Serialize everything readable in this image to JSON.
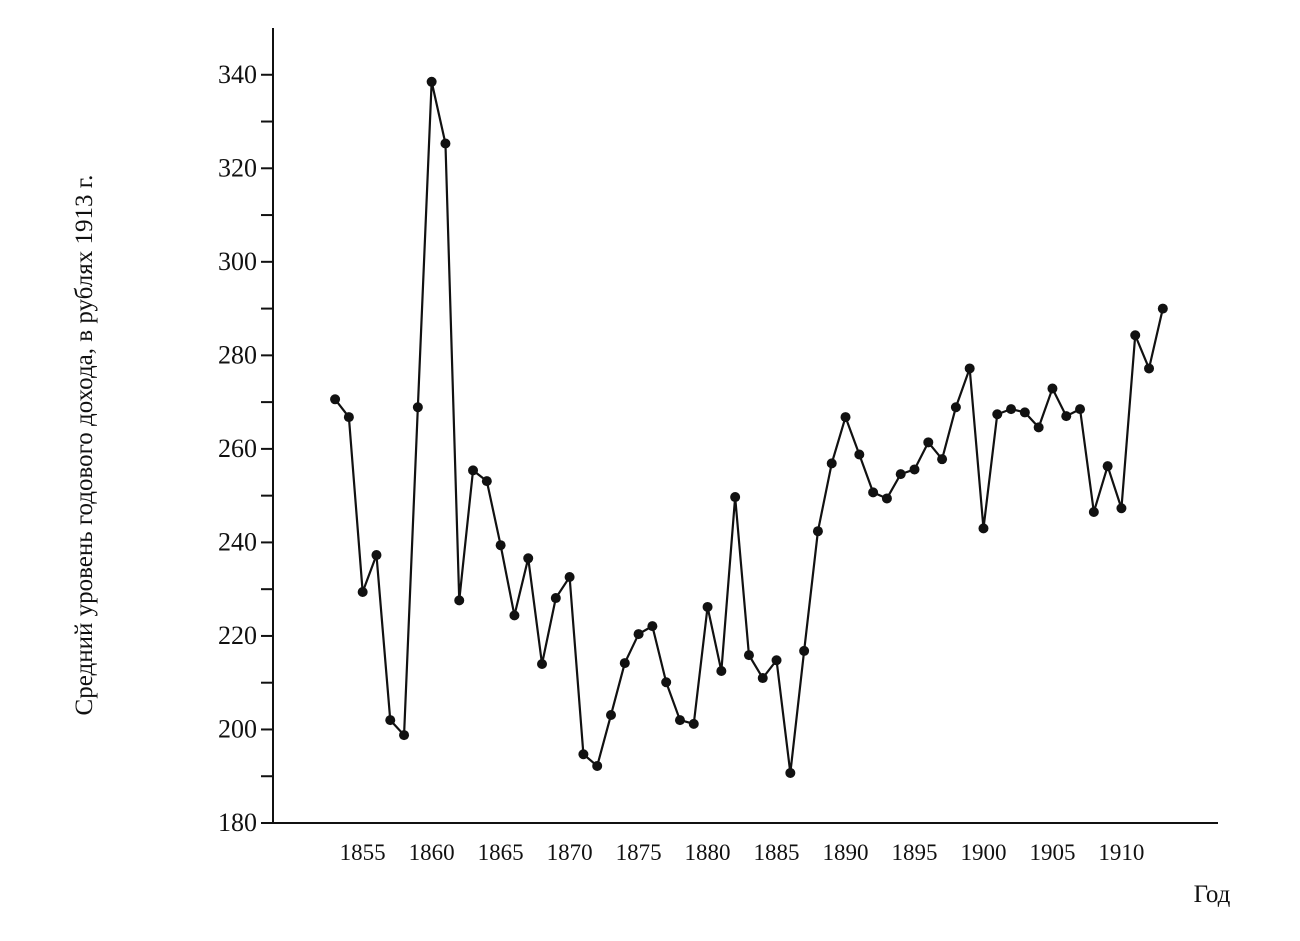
{
  "chart_data": {
    "type": "line",
    "y_label": "Средний уровень годового дохода, в рублях 1913 г.",
    "x_label": "Год",
    "x": [
      1853,
      1854,
      1855,
      1856,
      1857,
      1858,
      1859,
      1860,
      1861,
      1862,
      1863,
      1864,
      1865,
      1866,
      1867,
      1868,
      1869,
      1870,
      1871,
      1872,
      1873,
      1874,
      1875,
      1876,
      1877,
      1878,
      1879,
      1880,
      1881,
      1882,
      1883,
      1884,
      1885,
      1886,
      1887,
      1888,
      1889,
      1890,
      1891,
      1892,
      1893,
      1894,
      1895,
      1896,
      1897,
      1898,
      1899,
      1900,
      1901,
      1902,
      1903,
      1904,
      1905,
      1906,
      1907,
      1908,
      1909,
      1910,
      1911,
      1912,
      1913
    ],
    "values": [
      270.6,
      266.8,
      229.4,
      237.3,
      202,
      198.8,
      268.9,
      338.5,
      325.3,
      227.6,
      255.4,
      253.1,
      239.4,
      224.4,
      236.6,
      214,
      228.1,
      232.6,
      194.7,
      192.2,
      203.1,
      214.2,
      220.4,
      222.1,
      210.1,
      202,
      201.2,
      226.2,
      212.5,
      249.7,
      215.9,
      211,
      214.8,
      190.7,
      216.8,
      242.4,
      256.9,
      266.8,
      258.8,
      250.7,
      249.4,
      254.6,
      255.6,
      261.4,
      257.8,
      268.9,
      277.2,
      243,
      267.4,
      268.5,
      267.8,
      264.6,
      272.9,
      267,
      268.5,
      246.5,
      256.3,
      247.3,
      284.3,
      277.2,
      290
    ],
    "color": "#111111",
    "xlim": [
      1848.5,
      1917
    ],
    "xticks": [
      1855,
      1860,
      1865,
      1870,
      1875,
      1880,
      1885,
      1890,
      1895,
      1900,
      1905,
      1910
    ],
    "ylim": [
      180,
      350
    ],
    "yticks": [
      180,
      200,
      220,
      240,
      260,
      280,
      300,
      320,
      340
    ],
    "yminorticks": [
      190,
      210,
      230,
      250,
      270,
      290,
      310,
      330
    ],
    "grid": false
  }
}
